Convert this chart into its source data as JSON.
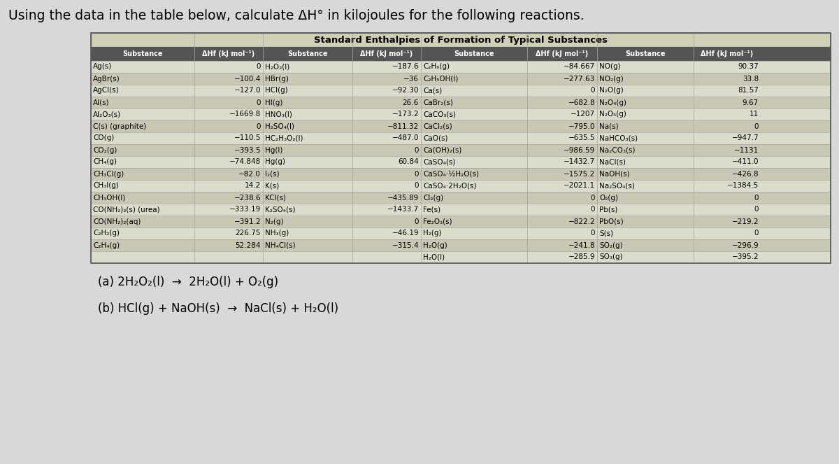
{
  "title": "Using the data in the table below, calculate ΔH° in kilojoules for the following reactions.",
  "table_title": "Standard Enthalpies of Formation of Typical Substances",
  "header_row": [
    "Substance",
    "ΔHf (kJ mol⁻¹)",
    "Substance",
    "ΔHf (kJ mol⁻¹)",
    "Substance",
    "ΔHf (kJ mol⁻¹)",
    "Substance",
    "ΔHf (kJ mol⁻¹)"
  ],
  "col1_substances": [
    "Ag(s)",
    "AgBr(s)",
    "AgCl(s)",
    "Al(s)",
    "Al₂O₃(s)",
    "C(s) (graphite)",
    "CO(g)",
    "CO₂(g)",
    "CH₄(g)",
    "CH₃Cl(g)",
    "CH₃I(g)",
    "CH₃OH(l)",
    "CO(NH₂)₂(s) (urea)",
    "CO(NH₂)₂(aq)",
    "C₂H₂(g)",
    "C₂H₄(g)"
  ],
  "col1_values": [
    "0",
    "−100.4",
    "−127.0",
    "0",
    "−1669.8",
    "0",
    "−110.5",
    "−393.5",
    "−74.848",
    "−82.0",
    "14.2",
    "−238.6",
    "−333.19",
    "−391.2",
    "226.75",
    "52.284"
  ],
  "col2_substances": [
    "H₂O₂(l)",
    "HBr(g)",
    "HCl(g)",
    "HI(g)",
    "HNO₃(l)",
    "H₂SO₄(l)",
    "HC₂H₃O₂(l)",
    "Hg(l)",
    "Hg(g)",
    "I₂(s)",
    "K(s)",
    "KCl(s)",
    "K₂SO₄(s)",
    "N₂(g)",
    "NH₃(g)",
    "NH₄Cl(s)"
  ],
  "col2_values": [
    "−187.6",
    "−36",
    "−92.30",
    "26.6",
    "−173.2",
    "−811.32",
    "−487.0",
    "0",
    "60.84",
    "0",
    "0",
    "−435.89",
    "−1433.7",
    "0",
    "−46.19",
    "−315.4"
  ],
  "col3_substances": [
    "C₂H₆(g)",
    "C₂H₅OH(l)",
    "Ca(s)",
    "CaBr₂(s)",
    "CaCO₃(s)",
    "CaCl₂(s)",
    "CaO(s)",
    "Ca(OH)₂(s)",
    "CaSO₄(s)",
    "CaSO₄·½H₂O(s)",
    "CaSO₄·2H₂O(s)",
    "Cl₂(g)",
    "Fe(s)",
    "Fe₂O₃(s)",
    "H₂(g)",
    "H₂O(g)",
    "H₂O(l)"
  ],
  "col3_values": [
    "−84.667",
    "−277.63",
    "0",
    "−682.8",
    "−1207",
    "−795.0",
    "−635.5",
    "−986.59",
    "−1432.7",
    "−1575.2",
    "−2021.1",
    "0",
    "0",
    "−822.2",
    "0",
    "−241.8",
    "−285.9"
  ],
  "col4_substances": [
    "NO(g)",
    "NO₂(g)",
    "N₂O(g)",
    "N₂O₄(g)",
    "N₂O₅(g)",
    "Na(s)",
    "NaHCO₃(s)",
    "Na₂CO₃(s)",
    "NaCl(s)",
    "NaOH(s)",
    "Na₂SO₄(s)",
    "O₂(g)",
    "Pb(s)",
    "PbO(s)",
    "S(s)",
    "SO₂(g)",
    "SO₃(g)"
  ],
  "col4_values": [
    "90.37",
    "33.8",
    "81.57",
    "9.67",
    "11",
    "0",
    "−947.7",
    "−1131",
    "−411.0",
    "−426.8",
    "−1384.5",
    "0",
    "0",
    "−219.2",
    "0",
    "−296.9",
    "−395.2"
  ],
  "reaction_a": "(a) 2H₂O₂(l)  →  2H₂O(l) + O₂(g)",
  "reaction_b": "(b) HCl(g) + NaOH(s)  →  NaCl(s) + H₂O(l)",
  "bg_color": "#d8d8d8",
  "table_header_bg": "#555555",
  "table_title_bg": "#d0d0b8",
  "row_colors": [
    "#dcdccc",
    "#c8c8b4"
  ],
  "border_color": "#888888",
  "text_color": "#111111",
  "header_text_color": "#ffffff"
}
